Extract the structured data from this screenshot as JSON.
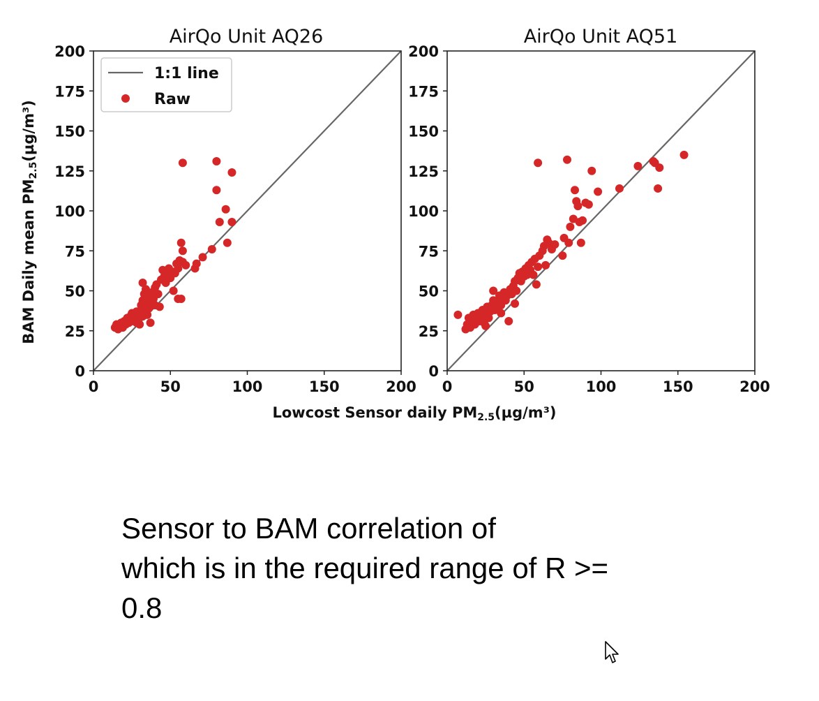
{
  "chart_data": [
    {
      "type": "scatter",
      "title": "AirQo Unit AQ26",
      "ylabel": "BAM Daily mean PM2.5(µg/m³)",
      "xlabel": "",
      "xlim": [
        0,
        200
      ],
      "ylim": [
        0,
        200
      ],
      "xticks": [
        "0",
        "50",
        "100",
        "150",
        "200"
      ],
      "yticks": [
        "0",
        "25",
        "50",
        "75",
        "100",
        "125",
        "150",
        "175",
        "200"
      ],
      "legend": {
        "placement": "top-left",
        "entries": [
          "1:1 line",
          "Raw"
        ]
      },
      "line_color": "#666666",
      "point_color": "#d62728",
      "reference_line": {
        "name": "1:1 line",
        "from": [
          0,
          0
        ],
        "to": [
          200,
          200
        ]
      },
      "series": [
        {
          "name": "Raw",
          "points": [
            [
              14,
              27
            ],
            [
              15,
              29
            ],
            [
              16,
              26
            ],
            [
              17,
              28
            ],
            [
              18,
              30
            ],
            [
              19,
              27
            ],
            [
              20,
              31
            ],
            [
              21,
              29
            ],
            [
              22,
              33
            ],
            [
              23,
              30
            ],
            [
              24,
              34
            ],
            [
              25,
              31
            ],
            [
              25,
              36
            ],
            [
              26,
              32
            ],
            [
              27,
              35
            ],
            [
              28,
              30
            ],
            [
              28,
              37
            ],
            [
              29,
              33
            ],
            [
              30,
              29
            ],
            [
              30,
              36
            ],
            [
              31,
              38
            ],
            [
              31,
              41
            ],
            [
              32,
              34
            ],
            [
              32,
              44
            ],
            [
              33,
              37
            ],
            [
              33,
              48
            ],
            [
              34,
              40
            ],
            [
              34,
              51
            ],
            [
              35,
              35
            ],
            [
              35,
              43
            ],
            [
              36,
              39
            ],
            [
              36,
              46
            ],
            [
              37,
              30
            ],
            [
              37,
              42
            ],
            [
              38,
              49
            ],
            [
              39,
              45
            ],
            [
              40,
              41
            ],
            [
              40,
              52
            ],
            [
              41,
              54
            ],
            [
              42,
              48
            ],
            [
              43,
              40
            ],
            [
              44,
              57
            ],
            [
              45,
              63
            ],
            [
              46,
              59
            ],
            [
              47,
              55
            ],
            [
              48,
              60
            ],
            [
              49,
              64
            ],
            [
              50,
              58
            ],
            [
              51,
              62
            ],
            [
              52,
              50
            ],
            [
              53,
              61
            ],
            [
              54,
              67
            ],
            [
              55,
              45
            ],
            [
              55,
              64
            ],
            [
              56,
              69
            ],
            [
              57,
              45
            ],
            [
              57,
              80
            ],
            [
              58,
              75
            ],
            [
              58,
              68
            ],
            [
              60,
              66
            ],
            [
              32,
              55
            ],
            [
              58,
              130
            ],
            [
              66,
              64
            ],
            [
              67,
              67
            ],
            [
              71,
              71
            ],
            [
              77,
              76
            ],
            [
              80,
              131
            ],
            [
              80,
              113
            ],
            [
              82,
              93
            ],
            [
              86,
              101
            ],
            [
              87,
              80
            ],
            [
              90,
              124
            ],
            [
              90,
              93
            ]
          ]
        }
      ]
    },
    {
      "type": "scatter",
      "title": "AirQo Unit AQ51",
      "xlabel": "",
      "ylabel": "",
      "xlim": [
        0,
        200
      ],
      "ylim": [
        0,
        200
      ],
      "xticks": [
        "0",
        "50",
        "100",
        "150",
        "200"
      ],
      "yticks": [
        "0",
        "25",
        "50",
        "75",
        "100",
        "125",
        "150",
        "175",
        "200"
      ],
      "line_color": "#666666",
      "point_color": "#d62728",
      "reference_line": {
        "name": "1:1 line",
        "from": [
          0,
          0
        ],
        "to": [
          200,
          200
        ]
      },
      "series": [
        {
          "name": "Raw",
          "points": [
            [
              7,
              35
            ],
            [
              12,
              26
            ],
            [
              13,
              29
            ],
            [
              14,
              33
            ],
            [
              15,
              27
            ],
            [
              16,
              30
            ],
            [
              17,
              35
            ],
            [
              18,
              29
            ],
            [
              19,
              32
            ],
            [
              20,
              36
            ],
            [
              21,
              31
            ],
            [
              22,
              34
            ],
            [
              23,
              38
            ],
            [
              24,
              30
            ],
            [
              25,
              35
            ],
            [
              26,
              40
            ],
            [
              27,
              33
            ],
            [
              28,
              37
            ],
            [
              29,
              41
            ],
            [
              30,
              44
            ],
            [
              31,
              38
            ],
            [
              32,
              43
            ],
            [
              33,
              39
            ],
            [
              34,
              47
            ],
            [
              35,
              41
            ],
            [
              36,
              45
            ],
            [
              37,
              49
            ],
            [
              38,
              44
            ],
            [
              39,
              47
            ],
            [
              40,
              31
            ],
            [
              41,
              51
            ],
            [
              42,
              48
            ],
            [
              43,
              53
            ],
            [
              44,
              56
            ],
            [
              45,
              50
            ],
            [
              46,
              58
            ],
            [
              47,
              61
            ],
            [
              48,
              56
            ],
            [
              49,
              62
            ],
            [
              50,
              59
            ],
            [
              51,
              64
            ],
            [
              52,
              60
            ],
            [
              53,
              66
            ],
            [
              54,
              63
            ],
            [
              55,
              68
            ],
            [
              56,
              60
            ],
            [
              57,
              70
            ],
            [
              58,
              54
            ],
            [
              59,
              65
            ],
            [
              60,
              72
            ],
            [
              62,
              75
            ],
            [
              63,
              78
            ],
            [
              64,
              66
            ],
            [
              65,
              82
            ],
            [
              66,
              80
            ],
            [
              68,
              76
            ],
            [
              70,
              79
            ],
            [
              75,
              72
            ],
            [
              76,
              83
            ],
            [
              78,
              132
            ],
            [
              79,
              80
            ],
            [
              80,
              90
            ],
            [
              82,
              95
            ],
            [
              83,
              113
            ],
            [
              84,
              106
            ],
            [
              85,
              103
            ],
            [
              86,
              93
            ],
            [
              87,
              80
            ],
            [
              88,
              94
            ],
            [
              90,
              105
            ],
            [
              92,
              104
            ],
            [
              94,
              125
            ],
            [
              98,
              112
            ],
            [
              112,
              114
            ],
            [
              124,
              128
            ],
            [
              134,
              131
            ],
            [
              135,
              130
            ],
            [
              137,
              114
            ],
            [
              138,
              127
            ],
            [
              154,
              135
            ],
            [
              59,
              130
            ],
            [
              30,
              50
            ],
            [
              25,
              28
            ],
            [
              35,
              36
            ],
            [
              44,
              42
            ]
          ]
        }
      ]
    }
  ],
  "shared_xlabel": "Lowcost Sensor daily PM2.5(µg/m³)",
  "caption": {
    "line1": "Sensor to BAM correlation of",
    "line2": "which is in the required range of R >=",
    "line3": "0.8"
  },
  "cursor_icon": "arrow-pointer-icon"
}
